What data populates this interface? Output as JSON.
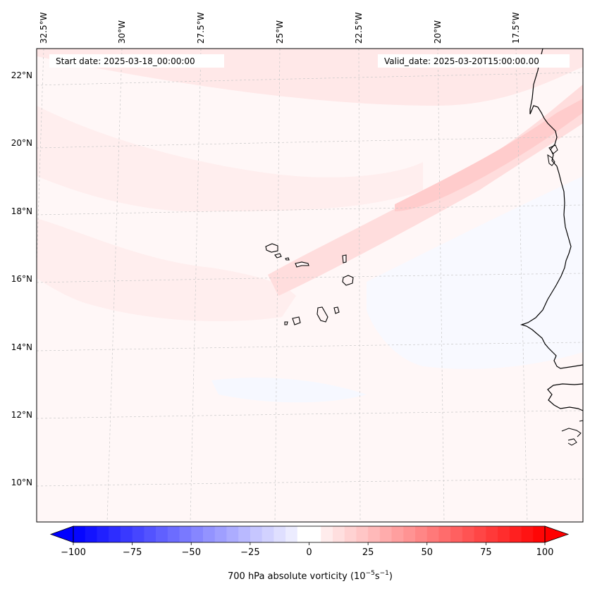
{
  "header": {
    "start_date": "Start date: 2025-03-18_00:00:00",
    "valid_date": "Valid_date: 2025-03-20T15:00:00.00"
  },
  "map": {
    "lon_labels": [
      "32.5°W",
      "30°W",
      "27.5°W",
      "25°W",
      "22.5°W",
      "20°W",
      "17.5°W"
    ],
    "lat_labels": [
      "22°N",
      "20°N",
      "18°N",
      "16°N",
      "14°N",
      "12°N",
      "10°N"
    ],
    "field": "700 hPa absolute vorticity",
    "colors": {
      "positive": "#ff0000",
      "negative": "#0000ff",
      "background": "#fff8f8",
      "coast": "#000000"
    }
  },
  "colorbar": {
    "ticks": [
      "−100",
      "−75",
      "−50",
      "−25",
      "0",
      "25",
      "50",
      "75",
      "100"
    ],
    "min": -100,
    "max": 100,
    "label_main": "700 hPa absolute vorticity (10",
    "label_exp1": "−5",
    "label_mid": "s",
    "label_exp2": "−1",
    "label_end": ")"
  }
}
